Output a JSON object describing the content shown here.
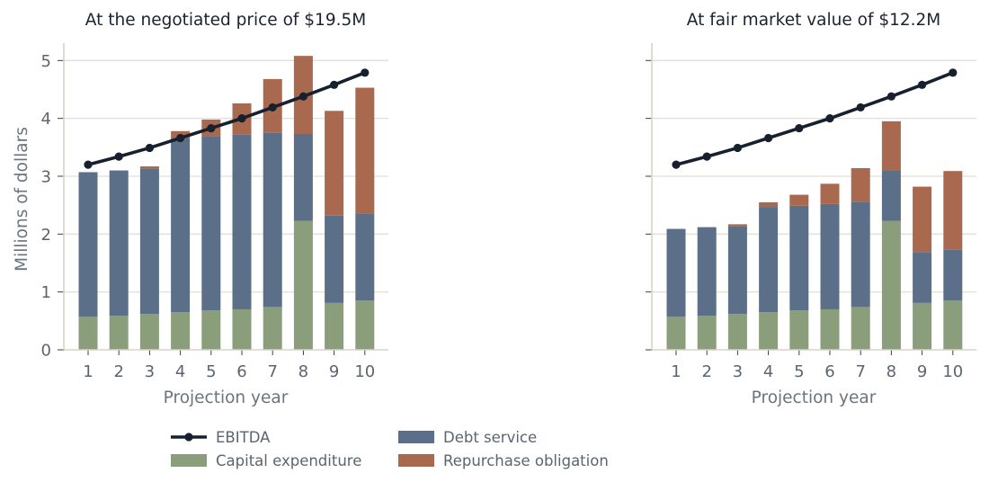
{
  "chart_data": [
    {
      "type": "bar",
      "stacked": true,
      "title": "At the negotiated price of $19.5M",
      "xlabel": "Projection year",
      "ylabel": "Millions of dollars",
      "categories": [
        "1",
        "2",
        "3",
        "4",
        "5",
        "6",
        "7",
        "8",
        "9",
        "10"
      ],
      "ylim": [
        0,
        5.3
      ],
      "yticks": [
        "0",
        "1",
        "2",
        "3",
        "4",
        "5"
      ],
      "grid": "horizontal",
      "series": [
        {
          "name": "Capital expenditure",
          "color": "#8a9e7c",
          "values": [
            0.57,
            0.59,
            0.62,
            0.65,
            0.68,
            0.7,
            0.74,
            2.23,
            0.81,
            0.85
          ]
        },
        {
          "name": "Debt service",
          "color": "#5b7088",
          "values": [
            2.5,
            2.51,
            2.51,
            3.01,
            3.01,
            3.02,
            3.01,
            1.5,
            1.51,
            1.51
          ]
        },
        {
          "name": "Repurchase obligation",
          "color": "#a8694f",
          "values": [
            0.0,
            0.0,
            0.04,
            0.12,
            0.29,
            0.54,
            0.93,
            1.35,
            1.81,
            2.17
          ]
        },
        {
          "name": "EBITDA",
          "color": "#17202e",
          "kind": "line",
          "values": [
            3.2,
            3.34,
            3.49,
            3.66,
            3.83,
            4.0,
            4.19,
            4.38,
            4.58,
            4.79
          ]
        }
      ]
    },
    {
      "type": "bar",
      "stacked": true,
      "title": "At fair market value of $12.2M",
      "xlabel": "Projection year",
      "ylabel": "",
      "categories": [
        "1",
        "2",
        "3",
        "4",
        "5",
        "6",
        "7",
        "8",
        "9",
        "10"
      ],
      "ylim": [
        0,
        5.3
      ],
      "yticks": [],
      "grid": "horizontal",
      "series": [
        {
          "name": "Capital expenditure",
          "color": "#8a9e7c",
          "values": [
            0.57,
            0.59,
            0.62,
            0.65,
            0.68,
            0.7,
            0.74,
            2.23,
            0.81,
            0.85
          ]
        },
        {
          "name": "Debt service",
          "color": "#5b7088",
          "values": [
            1.52,
            1.53,
            1.52,
            1.82,
            1.81,
            1.82,
            1.82,
            0.87,
            0.88,
            0.88
          ]
        },
        {
          "name": "Repurchase obligation",
          "color": "#a8694f",
          "values": [
            0.0,
            0.0,
            0.03,
            0.08,
            0.19,
            0.35,
            0.58,
            0.85,
            1.13,
            1.36
          ]
        },
        {
          "name": "EBITDA",
          "color": "#17202e",
          "kind": "line",
          "values": [
            3.2,
            3.34,
            3.49,
            3.66,
            3.83,
            4.0,
            4.19,
            4.38,
            4.58,
            4.79
          ]
        }
      ]
    }
  ],
  "legend": {
    "placement": "bottom-center",
    "entries": [
      {
        "label": "EBITDA",
        "kind": "line",
        "color": "#17202e"
      },
      {
        "label": "Debt service",
        "kind": "box",
        "color": "#5b7088"
      },
      {
        "label": "Capital expenditure",
        "kind": "box",
        "color": "#8a9e7c"
      },
      {
        "label": "Repurchase obligation",
        "kind": "box",
        "color": "#a8694f"
      }
    ]
  }
}
